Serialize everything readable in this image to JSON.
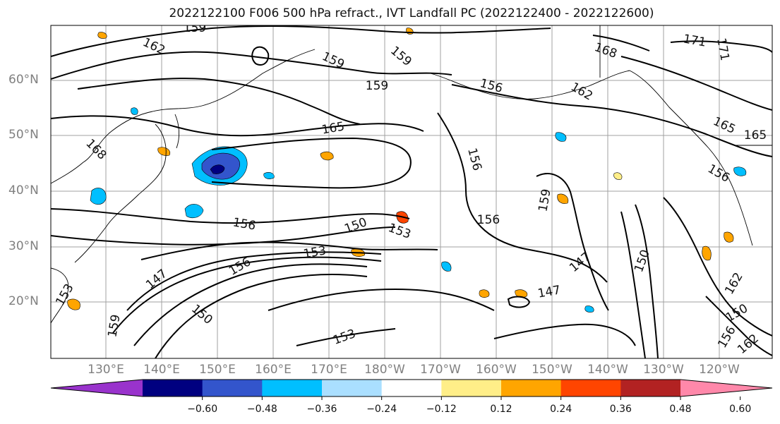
{
  "title": "2022122100 F006 500 hPa refract., IVT Landfall PC (2022122400 - 2022122600)",
  "map": {
    "lat_labels": [
      "60°N",
      "50°N",
      "40°N",
      "30°N",
      "20°N"
    ],
    "lon_labels": [
      "130°E",
      "140°E",
      "150°E",
      "160°E",
      "170°E",
      "180°W",
      "170°W",
      "160°W",
      "150°W",
      "140°W",
      "130°W",
      "120°W"
    ],
    "contour_labels": [
      "159",
      "162",
      "159",
      "159",
      "168",
      "171",
      "171",
      "159",
      "156",
      "162",
      "165",
      "165",
      "165",
      "168",
      "156",
      "156",
      "156",
      "159",
      "153",
      "156",
      "150",
      "153",
      "156",
      "147",
      "150",
      "162",
      "147",
      "147",
      "150",
      "153",
      "153",
      "150",
      "156",
      "159",
      "162"
    ]
  },
  "colorbar": {
    "colors": [
      "#9933cc",
      "#000080",
      "#3355cc",
      "#00bfff",
      "#aadfff",
      "#ffffff",
      "#ffee88",
      "#ffa500",
      "#ff4500",
      "#b22222",
      "#ff88aa"
    ],
    "ticks": [
      "−0.60",
      "−0.48",
      "−0.36",
      "−0.24",
      "−0.12",
      "0.12",
      "0.24",
      "0.36",
      "0.48",
      "0.60"
    ]
  }
}
